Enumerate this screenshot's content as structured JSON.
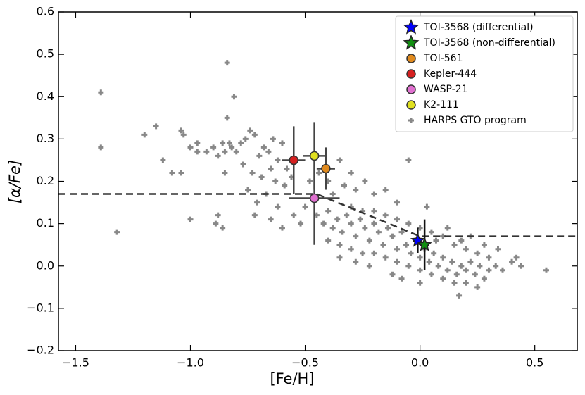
{
  "chart_data": {
    "type": "scatter",
    "xlabel": "[Fe/H]",
    "ylabel": "[α/Fe]",
    "xlim": [
      -1.575,
      0.685
    ],
    "ylim": [
      -0.2,
      0.6
    ],
    "xticks": [
      {
        "value": -1.5,
        "label": "−1.5"
      },
      {
        "value": -1.0,
        "label": "−1.0"
      },
      {
        "value": -0.5,
        "label": "−0.5"
      },
      {
        "value": 0.0,
        "label": "0.0"
      },
      {
        "value": 0.5,
        "label": "0.5"
      }
    ],
    "yticks": [
      {
        "value": -0.2,
        "label": "−0.2"
      },
      {
        "value": -0.1,
        "label": "−0.1"
      },
      {
        "value": 0.0,
        "label": "0.0"
      },
      {
        "value": 0.1,
        "label": "0.1"
      },
      {
        "value": 0.2,
        "label": "0.2"
      },
      {
        "value": 0.3,
        "label": "0.3"
      },
      {
        "value": 0.4,
        "label": "0.4"
      },
      {
        "value": 0.5,
        "label": "0.5"
      },
      {
        "value": 0.6,
        "label": "0.6"
      }
    ],
    "legend": "upper right",
    "trend": {
      "color": "#333333",
      "style": "dashed",
      "x": [
        -1.575,
        -0.45,
        0.0,
        0.685
      ],
      "values": [
        0.17,
        0.17,
        0.07,
        0.07
      ]
    },
    "series": [
      {
        "name": "TOI-3568 (differential)",
        "color": "#0000ff",
        "marker": "star",
        "x": [
          -0.01
        ],
        "values": [
          0.06
        ],
        "xerr": [
          0.02
        ],
        "yerr": [
          0.03
        ]
      },
      {
        "name": "TOI-3568 (non-differential)",
        "color": "#109010",
        "marker": "star",
        "x": [
          0.02
        ],
        "values": [
          0.05
        ],
        "xerr": [
          0.02
        ],
        "yerr": [
          0.06
        ]
      },
      {
        "name": "TOI-561",
        "color": "#e08a1e",
        "marker": "circle",
        "x": [
          -0.41
        ],
        "values": [
          0.23
        ],
        "xerr": [
          0.04
        ],
        "yerr": [
          0.05
        ]
      },
      {
        "name": "Kepler-444",
        "color": "#d62020",
        "marker": "circle",
        "x": [
          -0.55
        ],
        "values": [
          0.25
        ],
        "xerr": [
          0.05
        ],
        "yerr": [
          0.08
        ]
      },
      {
        "name": "WASP-21",
        "color": "#e070d0",
        "marker": "circle",
        "x": [
          -0.46
        ],
        "values": [
          0.16
        ],
        "xerr": [
          0.11
        ],
        "yerr": [
          0.11
        ]
      },
      {
        "name": "K2-111",
        "color": "#e0e020",
        "marker": "circle",
        "x": [
          -0.46
        ],
        "values": [
          0.26
        ],
        "xerr": [
          0.05
        ],
        "yerr": [
          0.08
        ]
      },
      {
        "name": "HARPS GTO program",
        "color": "#888888",
        "marker": "plus",
        "x": [
          -1.39,
          -1.39,
          -1.32,
          -1.2,
          -1.15,
          -1.12,
          -1.08,
          -1.04,
          -1.03,
          -1.04,
          -1.0,
          -0.97,
          -0.97,
          -0.84,
          -0.81,
          -0.85,
          -0.84,
          -0.83,
          -1.0,
          -0.85,
          -0.86,
          -0.88,
          -0.89,
          0.55,
          0.17,
          0.42,
          0.44,
          -0.93,
          -0.9,
          -0.88,
          -0.86,
          -0.82,
          -0.8,
          -0.78,
          -0.76,
          -0.74,
          -0.72,
          -0.7,
          -0.68,
          -0.66,
          -0.64,
          -0.62,
          -0.6,
          -0.58,
          -0.77,
          -0.73,
          -0.69,
          -0.65,
          -0.63,
          -0.59,
          -0.56,
          -0.75,
          -0.71,
          -0.67,
          -0.62,
          -0.72,
          -0.65,
          -0.6,
          -0.55,
          -0.52,
          -0.5,
          -0.48,
          -0.44,
          -0.4,
          -0.38,
          -0.35,
          -0.33,
          -0.3,
          -0.28,
          -0.24,
          -0.2,
          -0.15,
          -0.1,
          -0.05,
          0.03,
          -0.45,
          -0.42,
          -0.4,
          -0.38,
          -0.36,
          -0.34,
          -0.32,
          -0.3,
          -0.28,
          -0.26,
          -0.24,
          -0.22,
          -0.2,
          -0.18,
          -0.16,
          -0.14,
          -0.12,
          -0.1,
          -0.08,
          -0.06,
          -0.04,
          -0.02,
          0.0,
          0.02,
          0.04,
          0.06,
          0.08,
          0.1,
          0.12,
          0.14,
          0.16,
          0.18,
          0.2,
          0.22,
          0.24,
          0.26,
          0.28,
          0.3,
          0.33,
          0.36,
          0.4,
          -0.4,
          -0.35,
          -0.3,
          -0.25,
          -0.2,
          -0.15,
          -0.1,
          -0.05,
          0.0,
          0.05,
          0.1,
          0.15,
          0.2,
          0.25,
          -0.3,
          -0.25,
          -0.2,
          -0.15,
          -0.1,
          -0.05,
          0.0,
          0.05,
          0.1,
          0.15,
          0.2,
          0.25,
          0.3,
          -0.35,
          -0.28,
          -0.22,
          -0.12,
          -0.08,
          0.0,
          0.07,
          0.12,
          0.18,
          0.22,
          0.28,
          0.34
        ],
        "values": [
          0.41,
          0.28,
          0.08,
          0.31,
          0.33,
          0.25,
          0.22,
          0.32,
          0.31,
          0.22,
          0.28,
          0.29,
          0.27,
          0.48,
          0.4,
          0.27,
          0.35,
          0.29,
          0.11,
          0.22,
          0.09,
          0.12,
          0.1,
          -0.01,
          -0.07,
          0.02,
          0.0,
          0.27,
          0.28,
          0.26,
          0.29,
          0.28,
          0.27,
          0.29,
          0.3,
          0.32,
          0.31,
          0.26,
          0.28,
          0.27,
          0.3,
          0.25,
          0.29,
          0.23,
          0.24,
          0.22,
          0.21,
          0.23,
          0.2,
          0.19,
          0.21,
          0.18,
          0.15,
          0.17,
          0.14,
          0.12,
          0.11,
          0.09,
          0.12,
          0.1,
          0.14,
          0.2,
          0.22,
          0.2,
          0.17,
          0.25,
          0.19,
          0.22,
          0.18,
          0.2,
          0.17,
          0.18,
          0.15,
          0.25,
          0.14,
          0.12,
          0.1,
          0.13,
          0.09,
          0.11,
          0.08,
          0.12,
          0.1,
          0.07,
          0.11,
          0.09,
          0.06,
          0.1,
          0.08,
          0.05,
          0.09,
          0.07,
          0.04,
          0.08,
          0.05,
          0.03,
          0.06,
          0.02,
          0.04,
          0.01,
          0.03,
          0.0,
          0.02,
          -0.01,
          0.01,
          -0.02,
          0.0,
          -0.01,
          0.01,
          -0.02,
          0.0,
          -0.03,
          -0.01,
          0.0,
          -0.01,
          0.01,
          0.06,
          0.05,
          0.04,
          0.03,
          0.03,
          0.02,
          0.01,
          0.0,
          -0.01,
          -0.02,
          -0.03,
          -0.04,
          -0.04,
          -0.05,
          0.14,
          0.13,
          0.13,
          0.12,
          0.11,
          0.1,
          0.09,
          0.08,
          0.07,
          0.05,
          0.04,
          0.03,
          0.02,
          0.02,
          0.01,
          0.0,
          -0.02,
          -0.03,
          -0.04,
          0.06,
          0.09,
          0.06,
          0.07,
          0.05,
          0.04
        ]
      }
    ]
  }
}
